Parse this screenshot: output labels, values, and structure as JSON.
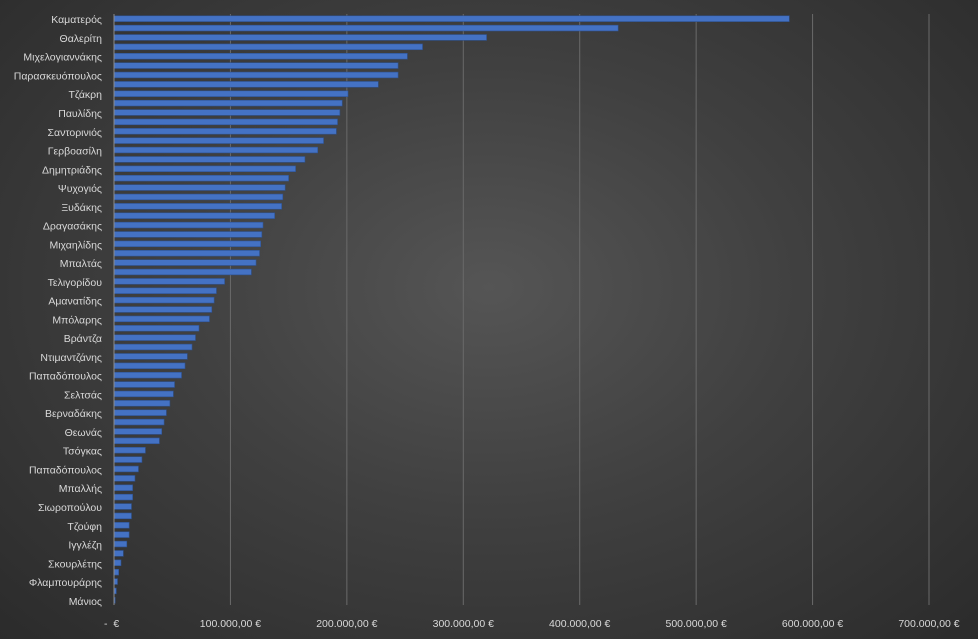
{
  "chart_data": {
    "type": "bar",
    "orientation": "horizontal",
    "title": "",
    "xlabel": "",
    "ylabel": "",
    "xlim": [
      0,
      700000
    ],
    "grid": true,
    "legend": "none",
    "bar_color": "#4472c4",
    "x_tick_values": [
      0,
      100000,
      200000,
      300000,
      400000,
      500000,
      600000,
      700000
    ],
    "x_tick_labels": [
      "-  €",
      "100.000,00 €",
      "200.000,00 €",
      "300.000,00 €",
      "400.000,00 €",
      "500.000,00 €",
      "600.000,00 €",
      "700.000,00 €"
    ],
    "categories": [
      "Καματερός",
      "",
      "Θαλερίτη",
      "",
      "Μιχελογιαννάκης",
      "",
      "Παρασκευόπουλος",
      "",
      "Τζάκρη",
      "",
      "Παυλίδης",
      "",
      "Σαντορινιός",
      "",
      "Γερβοασίλη",
      "",
      "Δημητριάδης",
      "",
      "Ψυχογιός",
      "",
      "Ξυδάκης",
      "",
      "Δραγασάκης",
      "",
      "Μιχαηλίδης",
      "",
      "Μπαλτάς",
      "",
      "Τελιγορίδου",
      "",
      "Αμανατίδης",
      "",
      "Μπόλαρης",
      "",
      "Βράντζα",
      "",
      "Ντιμαντζάνης",
      "",
      "Παπαδόπουλος",
      "",
      "Σελτσάς",
      "",
      "Βερναδάκης",
      "",
      "Θεωνάς",
      "",
      "Τσόγκας",
      "",
      "Παπαδόπουλος",
      "",
      "Μπαλλής",
      "",
      "Σιωροπούλου",
      "",
      "Τζούφη",
      "",
      "Ιγγλέζη",
      "",
      "Σκουρλέτης",
      "",
      "Φλαμπουράρης",
      "",
      "Μάνιος"
    ],
    "values": [
      580000,
      433000,
      320000,
      265000,
      252000,
      244000,
      244000,
      227000,
      201000,
      196000,
      194000,
      192000,
      191000,
      180000,
      175000,
      164000,
      156000,
      150000,
      147000,
      145000,
      144000,
      138000,
      128000,
      127000,
      126000,
      125000,
      122000,
      118000,
      95000,
      88000,
      86000,
      84000,
      82000,
      73000,
      70000,
      67000,
      63000,
      61000,
      58000,
      52000,
      51000,
      48000,
      45000,
      43000,
      41000,
      39000,
      27000,
      24000,
      21000,
      18000,
      16000,
      16000,
      15000,
      15000,
      13000,
      13000,
      11000,
      8000,
      6000,
      4000,
      3000,
      2000,
      1000
    ]
  }
}
